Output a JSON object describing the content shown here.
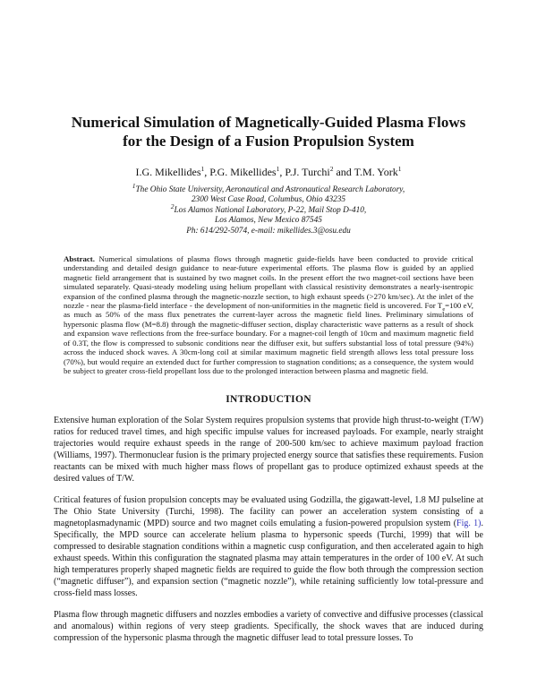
{
  "page": {
    "background_color": "#ffffff",
    "text_color": "#141414",
    "link_color": "#3436bd"
  },
  "title": {
    "line1": "Numerical Simulation of Magnetically-Guided Plasma Flows",
    "line2": "for the Design of a Fusion Propulsion System"
  },
  "authors": {
    "segments": [
      {
        "text": "I.G. Mikellides",
        "sup": "1"
      },
      {
        "text": ", P.G. Mikellides",
        "sup": "1"
      },
      {
        "text": ", P.J. Turchi",
        "sup": "2"
      },
      {
        "text": " and T.M. York",
        "sup": "1"
      }
    ]
  },
  "affiliations": {
    "line1_sup": "1",
    "line1": "The Ohio State University, Aeronautical and Astronautical Research Laboratory,",
    "line2": "2300 West Case Road, Columbus, Ohio 43235",
    "line3_sup": "2",
    "line3": "Los Alamos National Laboratory, P-22, Mail Stop D-410,",
    "line4": "Los Alamos, New Mexico 87545",
    "line5": "Ph: 614/292-5074, e-mail: mikellides.3@osu.edu"
  },
  "abstract": {
    "label": "Abstract.",
    "part1": " Numerical simulations of plasma flows through magnetic guide-fields have been conducted to provide critical understanding and detailed design guidance to near-future experimental efforts. The plasma flow is guided by an applied magnetic field arrangement that is sustained by two magnet coils. In the present effort the two magnet-coil sections have been simulated separately. Quasi-steady modeling using helium propellant with classical resistivity demonstrates a nearly-isentropic expansion of the confined plasma through the magnetic-nozzle section, to high exhaust speeds (>270 km/sec). At the inlet of the nozzle - near the plasma-field interface - the development of non-uniformities in the magnetic field is uncovered. For T",
    "sub1": "e",
    "part2": "=100 eV, as much as 50% of the mass flux penetrates the current-layer across the magnetic field lines. Preliminary simulations of hypersonic plasma flow (M=8.8) through the magnetic-diffuser section, display characteristic wave patterns as a result of shock and expansion wave reflections from the free-surface boundary. For a magnet-coil length of 10cm and maximum magnetic field of 0.3T, the flow is compressed to subsonic conditions near the diffuser exit, but suffers substantial loss of total pressure (94%) across the induced shock waves. A 30cm-long coil at similar maximum magnetic field strength allows less total pressure loss (70%), but would require an extended duct for further compression to stagnation conditions; as a consequence, the system would be subject to greater cross-field propellant loss due to the prolonged interaction between plasma and magnetic field."
  },
  "introduction": {
    "heading": "INTRODUCTION",
    "para1": "Extensive human exploration of the Solar System requires propulsion systems that provide high thrust-to-weight (T/W) ratios for reduced travel times, and high specific impulse values for increased payloads. For example, nearly straight trajectories would require exhaust speeds in the range of 200-500 km/sec to achieve maximum payload fraction (Williams, 1997). Thermonuclear fusion is the primary projected energy source that satisfies these requirements. Fusion reactants can be mixed with much higher mass flows of propellant gas to produce optimized exhaust speeds at the desired values of T/W.",
    "para2_before": "Critical features of fusion propulsion concepts may be evaluated using Godzilla, the gigawatt-level, 1.8 MJ pulseline at The Ohio State University (Turchi, 1998). The facility can power an acceleration system consisting of a magnetoplasmadynamic (MPD) source and two magnet coils emulating a fusion-powered propulsion system (",
    "para2_link": "Fig. 1)",
    "para2_after": ". Specifically, the MPD source can accelerate helium plasma to hypersonic speeds (Turchi, 1999) that will be compressed to desirable stagnation conditions within a magnetic cusp configuration, and then accelerated again to high exhaust speeds. Within this configuration the stagnated plasma may attain temperatures in the order of 100 eV. At such high temperatures properly shaped magnetic fields are required to guide the flow both through the compression section (“magnetic diffuser”), and expansion section (“magnetic nozzle”), while retaining sufficiently low total-pressure and cross-field mass losses.",
    "para3": "Plasma flow through magnetic diffusers and nozzles embodies a variety of convective and diffusive processes (classical and anomalous) within regions of very steep gradients. Specifically, the shock waves that are induced during compression of the hypersonic plasma through the magnetic diffuser lead to total pressure losses. To"
  }
}
